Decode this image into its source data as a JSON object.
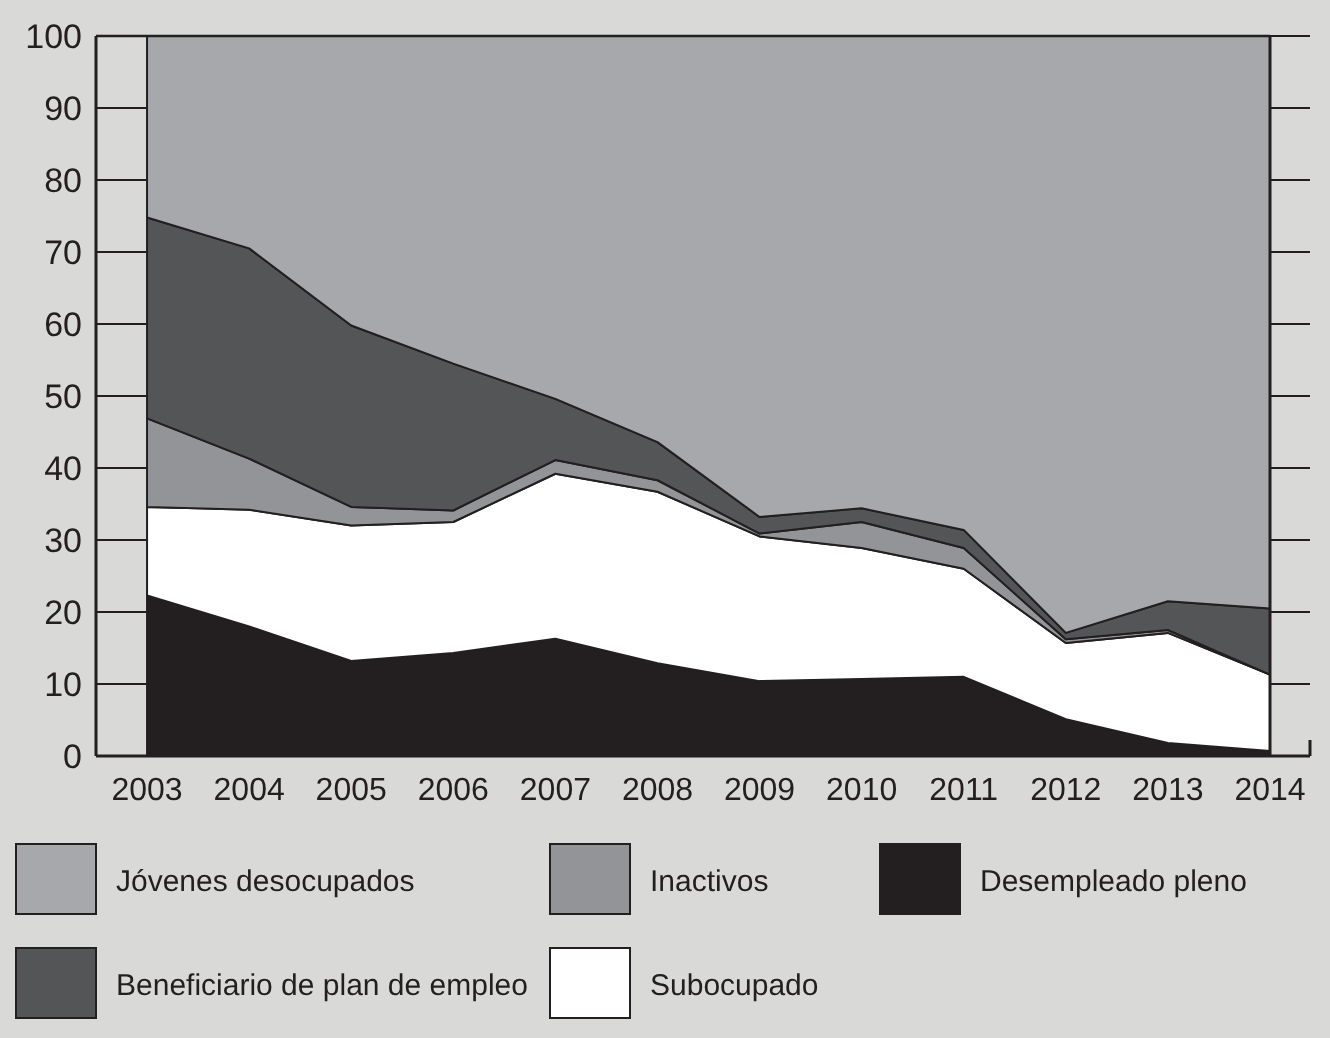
{
  "chart_data": {
    "type": "area",
    "stacked": true,
    "x": [
      2003,
      2004,
      2005,
      2006,
      2007,
      2008,
      2009,
      2010,
      2011,
      2012,
      2013,
      2014
    ],
    "xlim": [
      2002.5,
      2014
    ],
    "xticks": [
      2003,
      2004,
      2005,
      2006,
      2007,
      2008,
      2009,
      2010,
      2011,
      2012,
      2013,
      2014
    ],
    "ylim": [
      0,
      100
    ],
    "yticks": [
      0,
      10,
      20,
      30,
      40,
      50,
      60,
      70,
      80,
      90,
      100
    ],
    "grid": "y",
    "legend": "bottom",
    "series": [
      {
        "name": "Desempleado pleno",
        "color": "#231f20",
        "values": [
          22.3,
          18.0,
          13.2,
          14.3,
          16.3,
          12.9,
          10.4,
          10.7,
          11.0,
          5.1,
          1.8,
          0.7
        ]
      },
      {
        "name": "Subocupado",
        "color": "#ffffff",
        "values": [
          12.3,
          16.2,
          18.8,
          18.2,
          22.9,
          23.8,
          20.1,
          18.2,
          15.0,
          10.6,
          15.3,
          10.6
        ]
      },
      {
        "name": "Inactivos",
        "color": "#939497",
        "values": [
          12.3,
          7.1,
          2.6,
          1.6,
          1.9,
          1.6,
          0.4,
          3.6,
          2.9,
          0.5,
          0.4,
          0
        ]
      },
      {
        "name": "Beneficiario de plan de empleo",
        "color": "#545557",
        "values": [
          27.9,
          29.2,
          25.2,
          20.4,
          8.5,
          5.3,
          2.3,
          1.9,
          2.5,
          0.9,
          4.0,
          9.2
        ]
      },
      {
        "name": "Jóvenes desocupados",
        "color": "#a7a8ab",
        "values": [
          25.2,
          29.5,
          40.2,
          45.5,
          50.4,
          56.4,
          66.8,
          65.6,
          68.6,
          82.9,
          78.5,
          79.5
        ]
      }
    ]
  }
}
